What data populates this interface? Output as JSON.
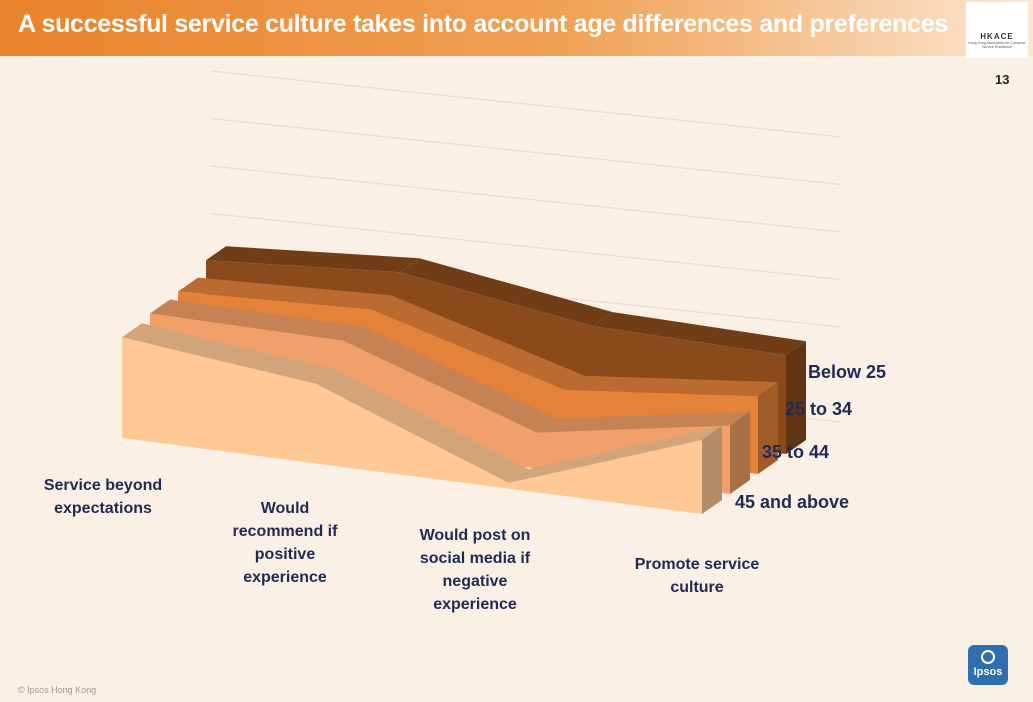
{
  "header": {
    "title": "A successful service culture takes into account age differences and preferences",
    "logo_text": "HKACE",
    "logo_subtext": "Hong Kong Association for Customer Service Excellence"
  },
  "page_number": "13",
  "footer": {
    "copyright": "© Ipsos Hong Kong",
    "brand": "Ipsos"
  },
  "chart_data": {
    "type": "area",
    "style": "3d-ribbon",
    "categories": [
      "Service beyond expectations",
      "Would recommend if positive experience",
      "Would post on social media if negative experience",
      "Promote service culture"
    ],
    "series": [
      {
        "name": "Below 25",
        "values": [
          62,
          69,
          54,
          52
        ],
        "color": "#8a4a1c"
      },
      {
        "name": "25 to 34",
        "values": [
          56,
          60,
          31,
          41
        ],
        "color": "#e5823a"
      },
      {
        "name": "35 to 44",
        "values": [
          55,
          54,
          19,
          36
        ],
        "color": "#f0a068"
      },
      {
        "name": "45 and above",
        "values": [
          53,
          42,
          3,
          39
        ],
        "color": "#ffc894"
      }
    ],
    "grid": true,
    "legend_position": "right"
  }
}
